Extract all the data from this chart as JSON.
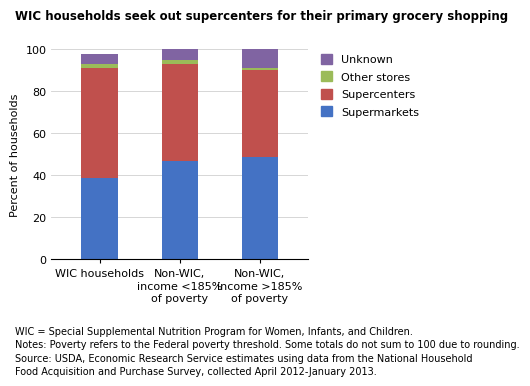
{
  "title": "WIC households seek out supercenters for their primary grocery shopping",
  "ylabel": "Percent of households",
  "categories": [
    "WIC households",
    "Non-WIC,\nincome <185%\nof poverty",
    "Non-WIC,\nincome >185%\nof poverty"
  ],
  "series": {
    "Supermarkets": [
      39,
      47,
      49
    ],
    "Supercenters": [
      52,
      46,
      41
    ],
    "Other stores": [
      2,
      2,
      1
    ],
    "Unknown": [
      5,
      5,
      9
    ]
  },
  "colors": {
    "Supermarkets": "#4472C4",
    "Supercenters": "#C0504D",
    "Other stores": "#9BBB59",
    "Unknown": "#8064A2"
  },
  "ylim": [
    0,
    100
  ],
  "yticks": [
    0,
    20,
    40,
    60,
    80,
    100
  ],
  "footnote_lines": [
    "WIC = Special Supplemental Nutrition Program for Women, Infants, and Children.",
    "Notes: Poverty refers to the Federal poverty threshold. Some totals do not sum to 100 due to rounding.",
    "Source: USDA, Economic Research Service estimates using data from the National Household",
    "Food Acquisition and Purchase Survey, collected April 2012-January 2013."
  ],
  "background_color": "#ffffff",
  "title_fontsize": 8.5,
  "label_fontsize": 8,
  "tick_fontsize": 8,
  "footnote_fontsize": 7,
  "legend_fontsize": 8
}
